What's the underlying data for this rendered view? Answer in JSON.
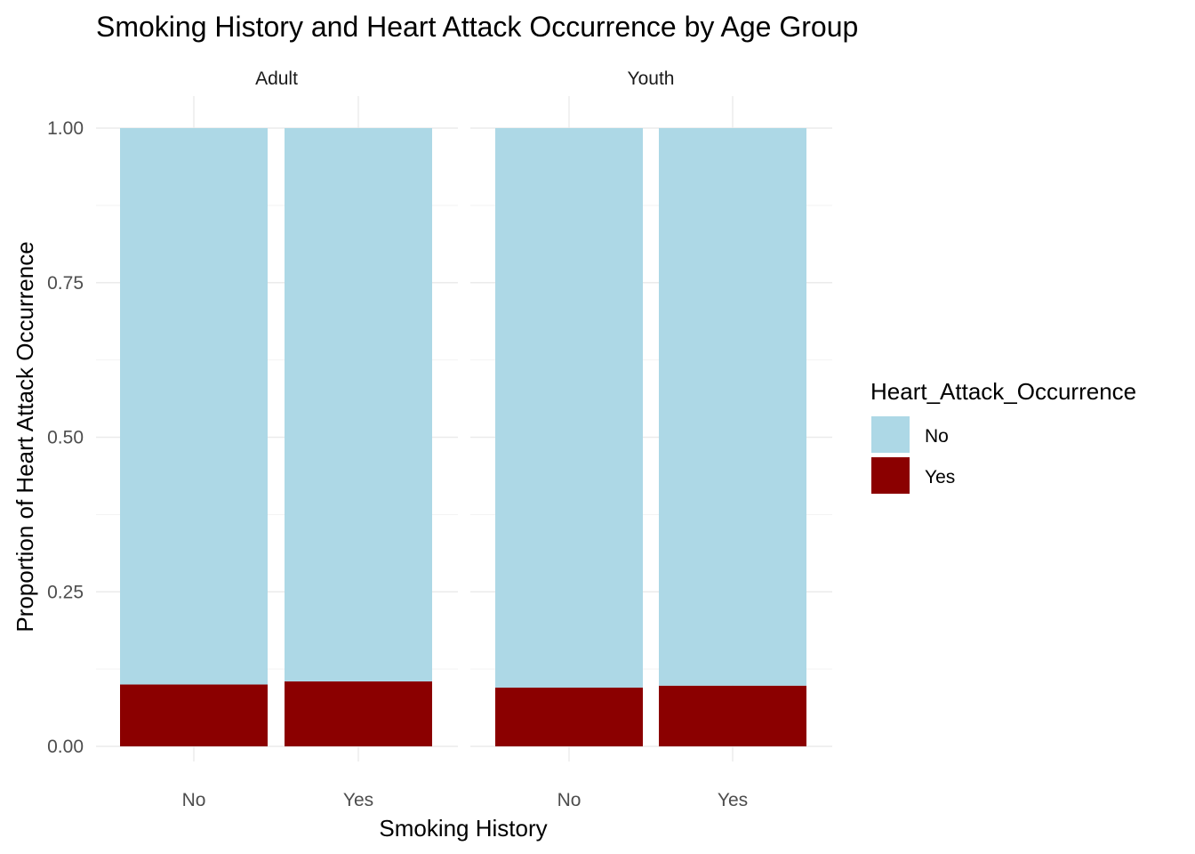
{
  "chart_data": {
    "type": "bar",
    "stacked": true,
    "position": "fill",
    "title": "Smoking History and Heart Attack Occurrence by Age Group",
    "xlabel": "Smoking History",
    "ylabel": "Proportion of Heart Attack Occurrence",
    "ylim": [
      0,
      1
    ],
    "y_ticks": [
      "0.00",
      "0.25",
      "0.50",
      "0.75",
      "1.00"
    ],
    "grid": true,
    "legend": {
      "title": "Heart_Attack_Occurrence",
      "position": "right",
      "items": [
        {
          "label": "No",
          "color": "#add8e6"
        },
        {
          "label": "Yes",
          "color": "#8b0000"
        }
      ]
    },
    "facets": [
      {
        "name": "Adult",
        "categories": [
          "No",
          "Yes"
        ],
        "series": [
          {
            "name": "No",
            "values": [
              0.9,
              0.895
            ]
          },
          {
            "name": "Yes",
            "values": [
              0.1,
              0.105
            ]
          }
        ]
      },
      {
        "name": "Youth",
        "categories": [
          "No",
          "Yes"
        ],
        "series": [
          {
            "name": "No",
            "values": [
              0.905,
              0.902
            ]
          },
          {
            "name": "Yes",
            "values": [
              0.095,
              0.098
            ]
          }
        ]
      }
    ]
  }
}
